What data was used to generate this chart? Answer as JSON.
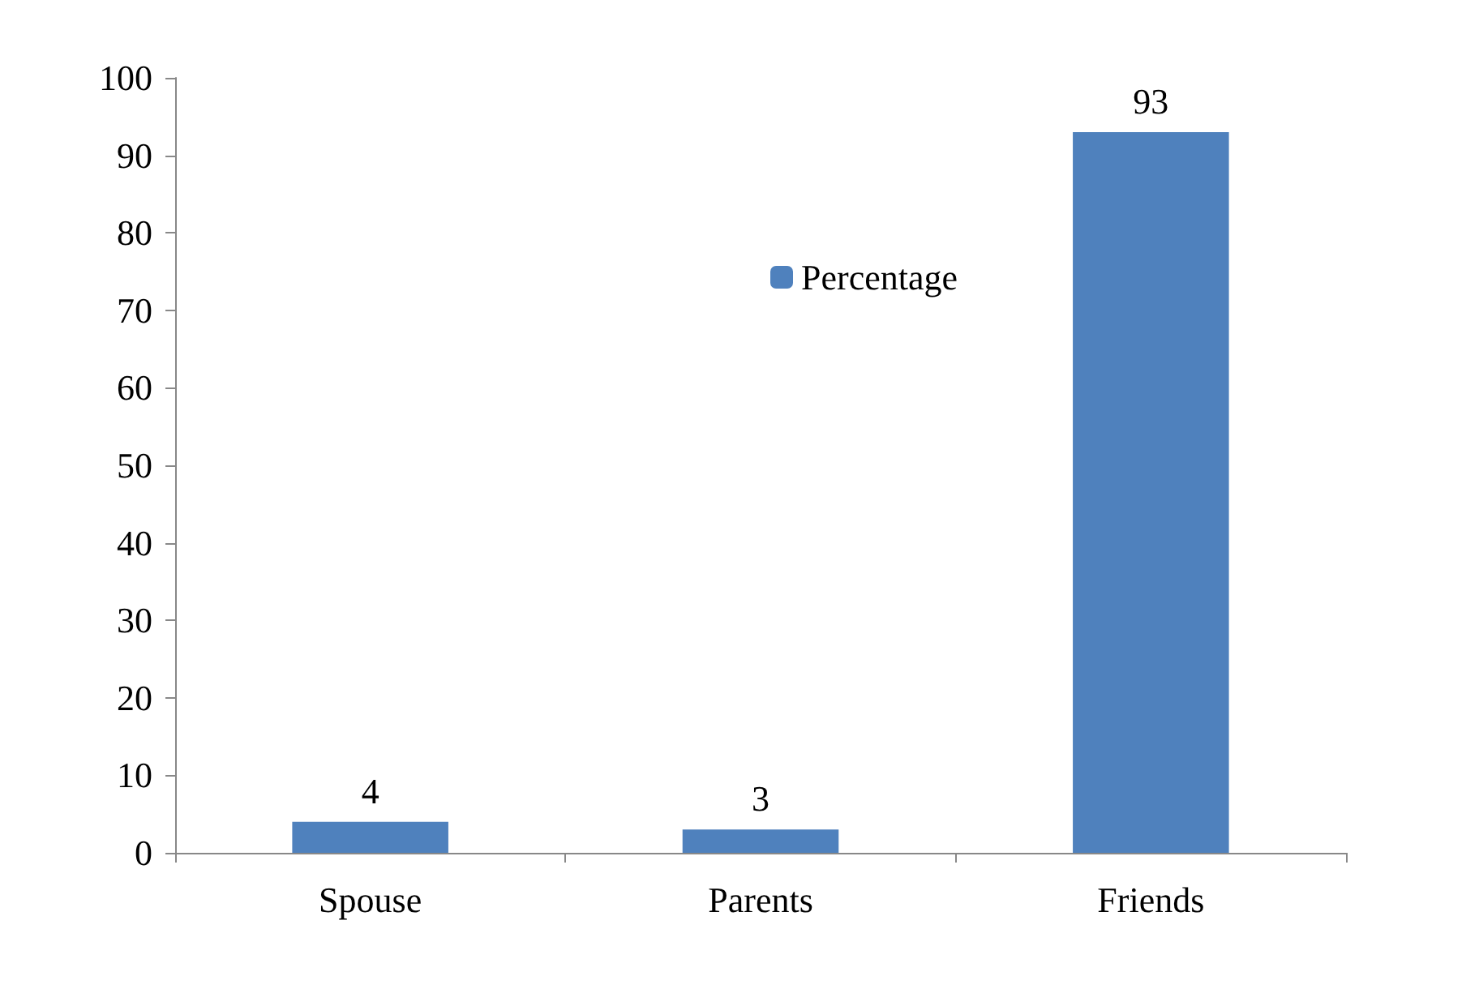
{
  "chart_data": {
    "type": "bar",
    "categories": [
      "Spouse",
      "Parents",
      "Friends"
    ],
    "series": [
      {
        "name": "Percentage",
        "color": "#4f81bd",
        "values": [
          4,
          3,
          93
        ]
      }
    ],
    "ylim": [
      0,
      100
    ],
    "yticks": [
      0,
      10,
      20,
      30,
      40,
      50,
      60,
      70,
      80,
      90,
      100
    ],
    "grid": false,
    "legend": "top right",
    "data_labels": true
  }
}
